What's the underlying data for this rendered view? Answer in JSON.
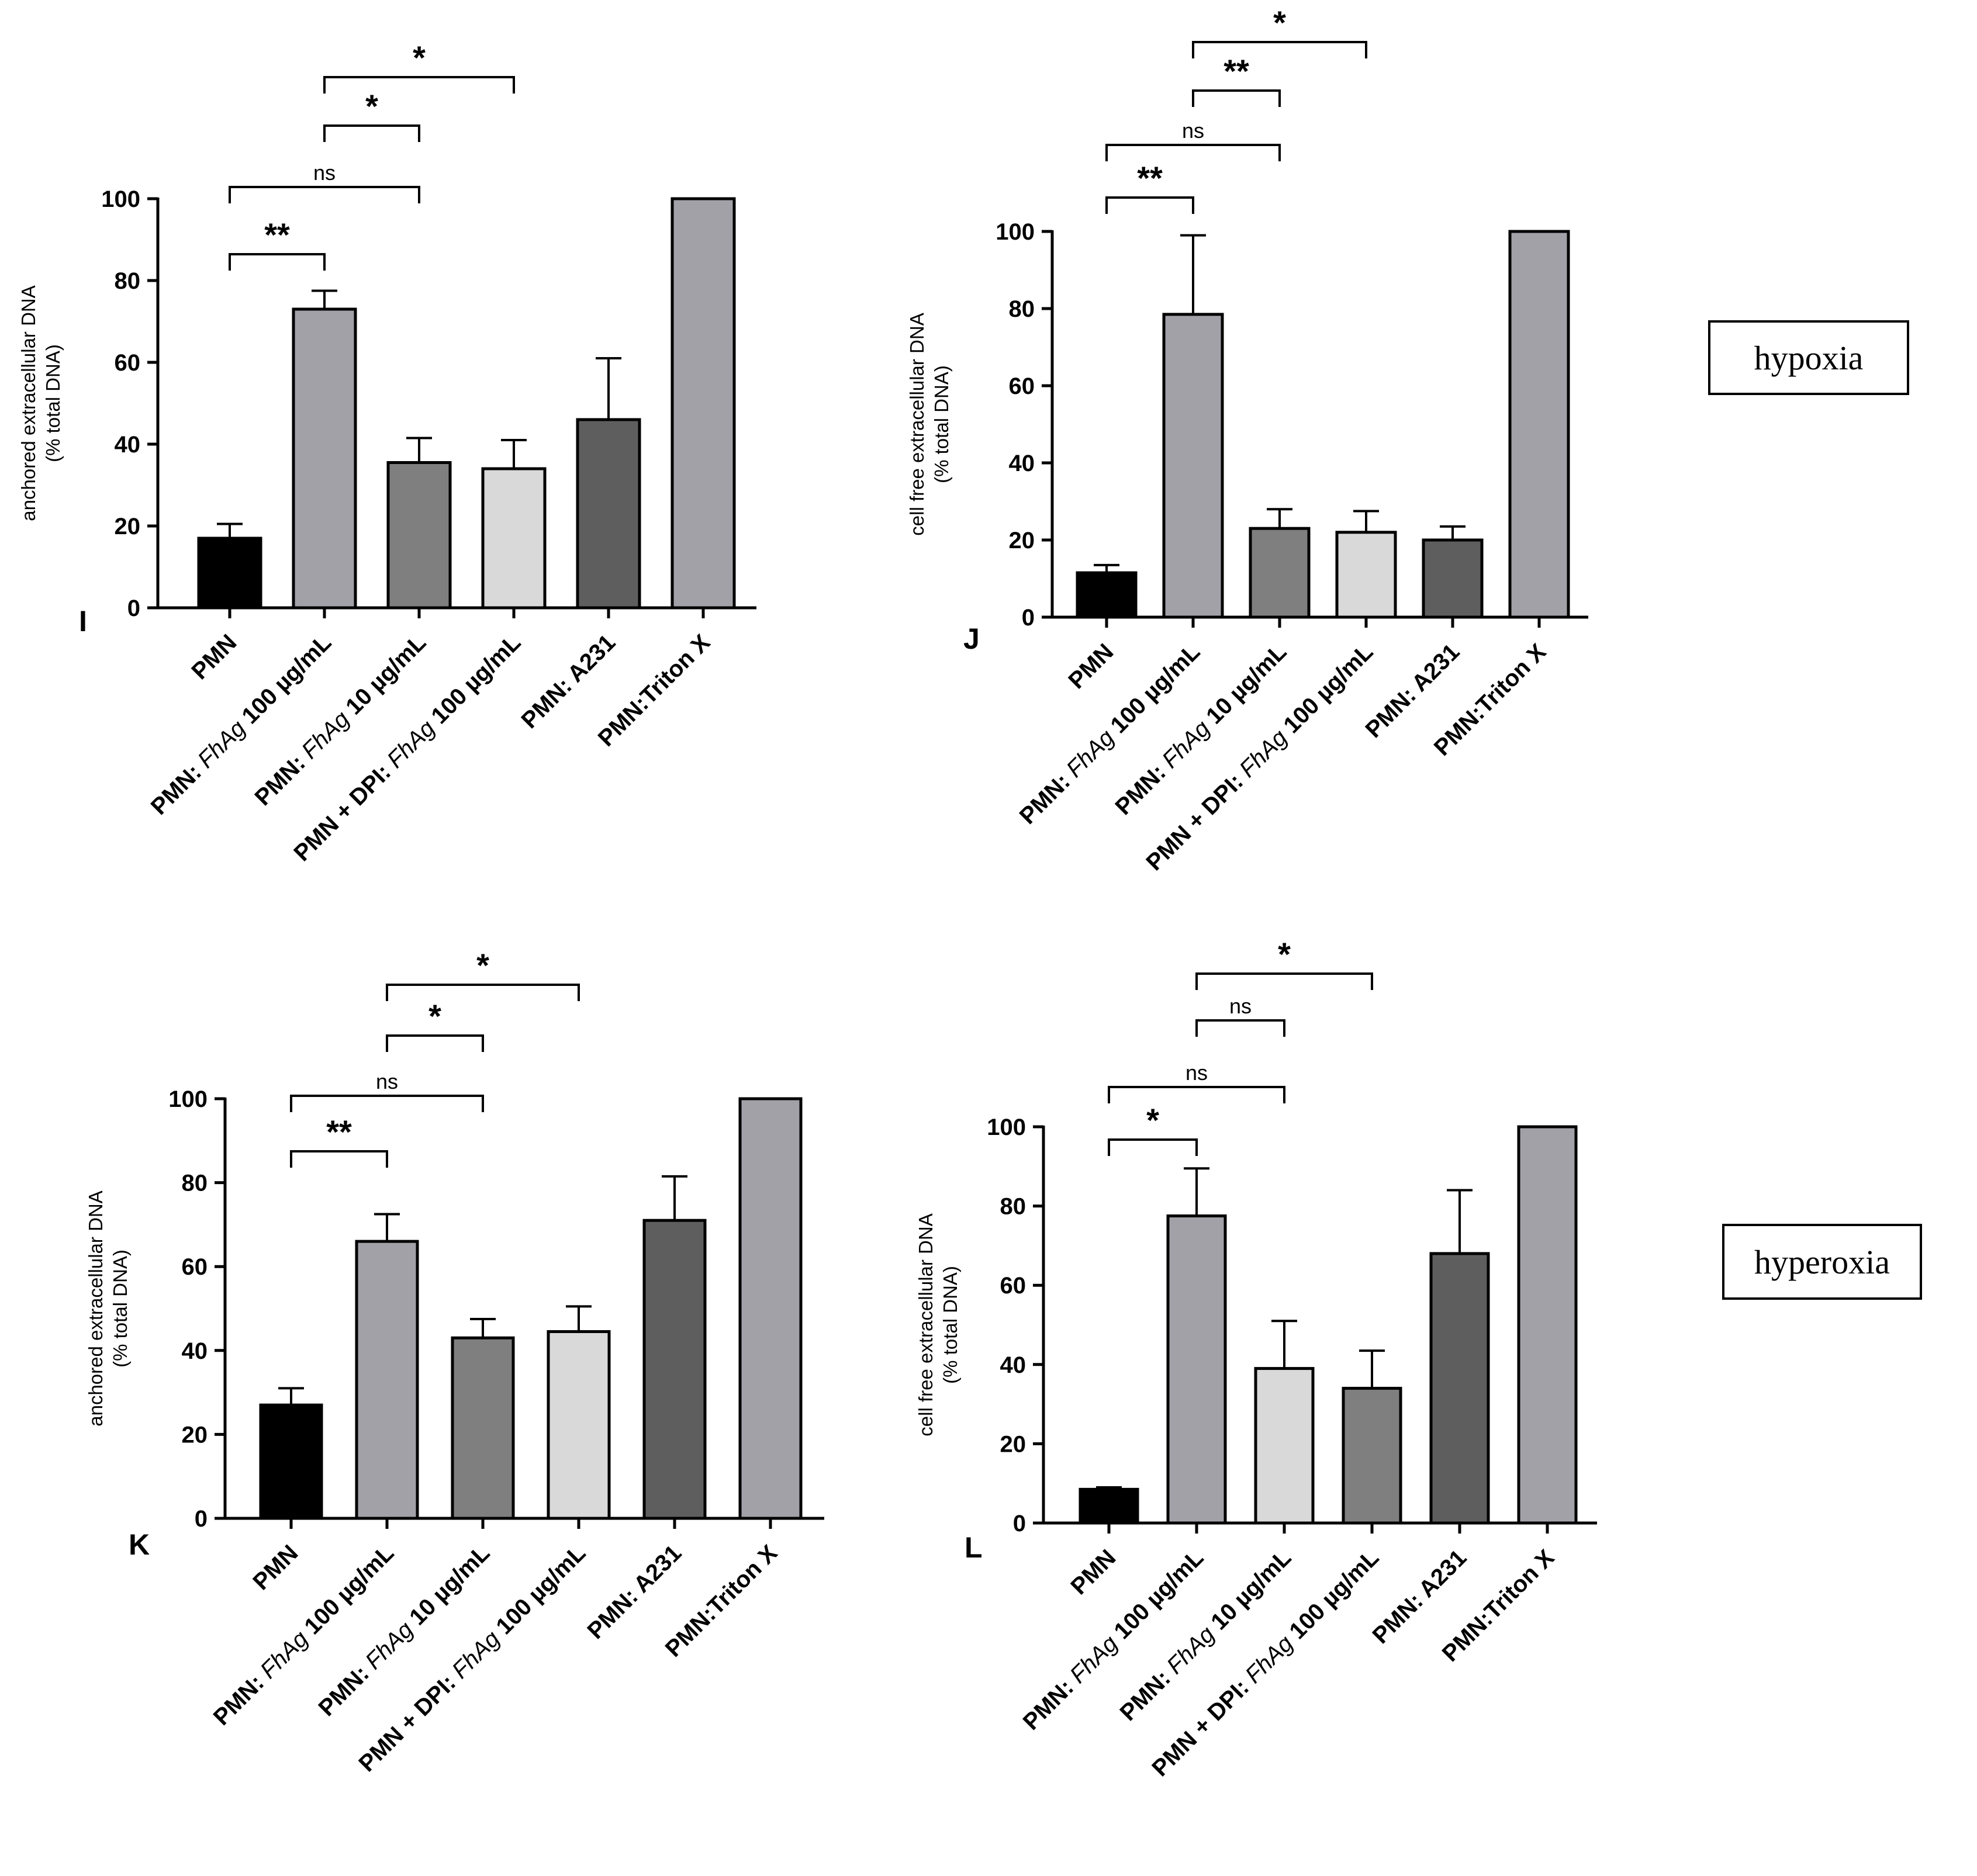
{
  "conditions": {
    "hypoxia": "hypoxia",
    "hyperoxia": "hyperoxia"
  },
  "chart_data": [
    {
      "panel": "I",
      "type": "bar",
      "title": "",
      "ylabel": "anchored extracellular DNA",
      "ylabel2": "(% total DNA)",
      "ylim": [
        0,
        100
      ],
      "yticks": [
        0,
        20,
        40,
        60,
        80,
        100
      ],
      "categories": [
        {
          "parts": [
            {
              "t": "PMN",
              "i": false
            }
          ]
        },
        {
          "parts": [
            {
              "t": "PMN: ",
              "i": false
            },
            {
              "t": "FhAg",
              "i": true
            },
            {
              "t": " 100 µg/mL",
              "i": false
            }
          ]
        },
        {
          "parts": [
            {
              "t": "PMN: ",
              "i": false
            },
            {
              "t": "FhAg",
              "i": true
            },
            {
              "t": " 10 µg/mL",
              "i": false
            }
          ]
        },
        {
          "parts": [
            {
              "t": "PMN + DPI: ",
              "i": false
            },
            {
              "t": "FhAg",
              "i": true
            },
            {
              "t": " 100 µg/mL",
              "i": false
            }
          ]
        },
        {
          "parts": [
            {
              "t": "PMN: A231",
              "i": false
            }
          ]
        },
        {
          "parts": [
            {
              "t": "PMN:Triton X",
              "i": false
            }
          ]
        }
      ],
      "values": [
        17,
        73,
        35.5,
        34,
        46,
        100
      ],
      "errors": [
        3.5,
        4.5,
        6,
        7,
        15,
        0
      ],
      "colors": [
        "#000000",
        "#a2a1a7",
        "#7f7f7f",
        "#d9d9d9",
        "#5e5e5e",
        "#a2a1a7"
      ],
      "comparisons": [
        {
          "from": 0,
          "to": 1,
          "label": "**",
          "level": 0
        },
        {
          "from": 0,
          "to": 2,
          "label": "ns",
          "level": 1
        },
        {
          "from": 1,
          "to": 2,
          "label": "*",
          "level": 2
        },
        {
          "from": 1,
          "to": 3,
          "label": "*",
          "level": 3
        }
      ]
    },
    {
      "panel": "J",
      "type": "bar",
      "title": "",
      "ylabel": "cell free extracellular DNA",
      "ylabel2": "(% total DNA)",
      "ylim": [
        0,
        100
      ],
      "yticks": [
        0,
        20,
        40,
        60,
        80,
        100
      ],
      "categories": [
        {
          "parts": [
            {
              "t": "PMN",
              "i": false
            }
          ]
        },
        {
          "parts": [
            {
              "t": "PMN: ",
              "i": false
            },
            {
              "t": "FhAg",
              "i": true
            },
            {
              "t": " 100 µg/mL",
              "i": false
            }
          ]
        },
        {
          "parts": [
            {
              "t": "PMN: ",
              "i": false
            },
            {
              "t": "FhAg",
              "i": true
            },
            {
              "t": " 10 µg/mL",
              "i": false
            }
          ]
        },
        {
          "parts": [
            {
              "t": "PMN + DPI: ",
              "i": false
            },
            {
              "t": "FhAg",
              "i": true
            },
            {
              "t": " 100 µg/mL",
              "i": false
            }
          ]
        },
        {
          "parts": [
            {
              "t": "PMN: A231",
              "i": false
            }
          ]
        },
        {
          "parts": [
            {
              "t": "PMN:Triton X",
              "i": false
            }
          ]
        }
      ],
      "values": [
        11.5,
        78.5,
        23,
        22,
        20,
        100
      ],
      "errors": [
        2,
        20.5,
        5,
        5.5,
        3.5,
        0
      ],
      "colors": [
        "#000000",
        "#a2a1a7",
        "#7f7f7f",
        "#d9d9d9",
        "#5e5e5e",
        "#a2a1a7"
      ],
      "comparisons": [
        {
          "from": 0,
          "to": 1,
          "label": "**",
          "level": 0
        },
        {
          "from": 0,
          "to": 2,
          "label": "ns",
          "level": 1
        },
        {
          "from": 1,
          "to": 2,
          "label": "**",
          "level": 2
        },
        {
          "from": 1,
          "to": 3,
          "label": "*",
          "level": 3
        }
      ]
    },
    {
      "panel": "K",
      "type": "bar",
      "title": "",
      "ylabel": "anchored extracellular DNA",
      "ylabel2": "(% total DNA)",
      "ylim": [
        0,
        100
      ],
      "yticks": [
        0,
        20,
        40,
        60,
        80,
        100
      ],
      "categories": [
        {
          "parts": [
            {
              "t": "PMN",
              "i": false
            }
          ]
        },
        {
          "parts": [
            {
              "t": "PMN: ",
              "i": false
            },
            {
              "t": "FhAg",
              "i": true
            },
            {
              "t": " 100 µg/mL",
              "i": false
            }
          ]
        },
        {
          "parts": [
            {
              "t": "PMN: ",
              "i": false
            },
            {
              "t": "FhAg",
              "i": true
            },
            {
              "t": " 10 µg/mL",
              "i": false
            }
          ]
        },
        {
          "parts": [
            {
              "t": "PMN + DPI: ",
              "i": false
            },
            {
              "t": "FhAg",
              "i": true
            },
            {
              "t": " 100 µg/mL",
              "i": false
            }
          ]
        },
        {
          "parts": [
            {
              "t": "PMN: A231",
              "i": false
            }
          ]
        },
        {
          "parts": [
            {
              "t": "PMN:Triton X",
              "i": false
            }
          ]
        }
      ],
      "values": [
        27,
        66,
        43,
        44.5,
        71,
        100
      ],
      "errors": [
        4,
        6.5,
        4.5,
        6,
        10.5,
        0
      ],
      "colors": [
        "#000000",
        "#a2a1a7",
        "#7f7f7f",
        "#d9d9d9",
        "#5e5e5e",
        "#a2a1a7"
      ],
      "comparisons": [
        {
          "from": 0,
          "to": 1,
          "label": "**",
          "level": 0
        },
        {
          "from": 0,
          "to": 2,
          "label": "ns",
          "level": 1
        },
        {
          "from": 1,
          "to": 2,
          "label": "*",
          "level": 2
        },
        {
          "from": 1,
          "to": 3,
          "label": "*",
          "level": 3
        }
      ]
    },
    {
      "panel": "L",
      "type": "bar",
      "title": "",
      "ylabel": "cell free extracellular DNA",
      "ylabel2": "(% total DNA)",
      "ylim": [
        0,
        100
      ],
      "yticks": [
        0,
        20,
        40,
        60,
        80,
        100
      ],
      "categories": [
        {
          "parts": [
            {
              "t": "PMN",
              "i": false
            }
          ]
        },
        {
          "parts": [
            {
              "t": "PMN: ",
              "i": false
            },
            {
              "t": "FhAg",
              "i": true
            },
            {
              "t": " 100 µg/mL",
              "i": false
            }
          ]
        },
        {
          "parts": [
            {
              "t": "PMN: ",
              "i": false
            },
            {
              "t": "FhAg",
              "i": true
            },
            {
              "t": " 10 µg/mL",
              "i": false
            }
          ]
        },
        {
          "parts": [
            {
              "t": "PMN + DPI: ",
              "i": false
            },
            {
              "t": "FhAg",
              "i": true
            },
            {
              "t": " 100 µg/mL",
              "i": false
            }
          ]
        },
        {
          "parts": [
            {
              "t": "PMN: A231",
              "i": false
            }
          ]
        },
        {
          "parts": [
            {
              "t": "PMN:Triton X",
              "i": false
            }
          ]
        }
      ],
      "values": [
        8.5,
        77.5,
        39,
        34,
        68,
        100
      ],
      "errors": [
        0.5,
        12,
        12,
        9.5,
        16,
        0
      ],
      "colors": [
        "#000000",
        "#a2a1a7",
        "#d9d9d9",
        "#7f7f7f",
        "#5e5e5e",
        "#a2a1a7"
      ],
      "comparisons": [
        {
          "from": 0,
          "to": 1,
          "label": "*",
          "level": 0
        },
        {
          "from": 0,
          "to": 2,
          "label": "ns",
          "level": 1
        },
        {
          "from": 1,
          "to": 2,
          "label": "ns",
          "level": 2
        },
        {
          "from": 1,
          "to": 3,
          "label": "*",
          "level": 3
        }
      ]
    }
  ]
}
